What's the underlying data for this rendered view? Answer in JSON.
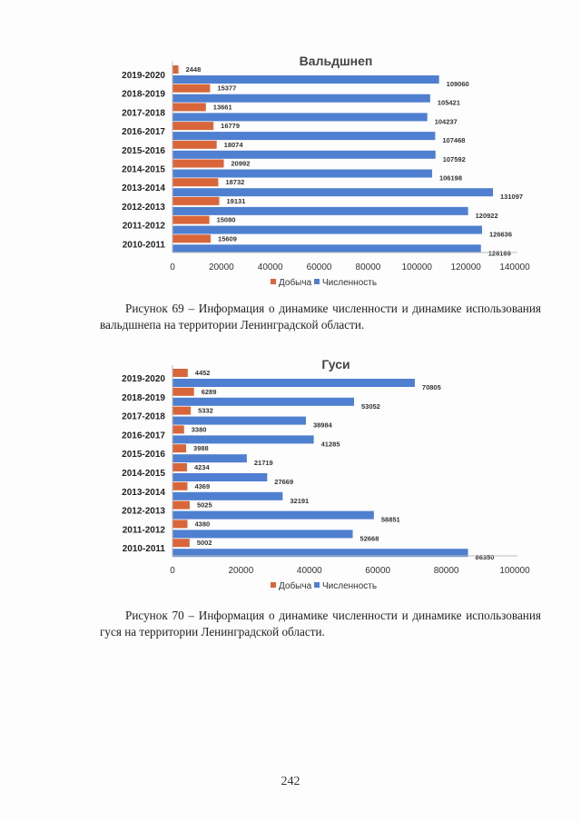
{
  "chart_data": [
    {
      "type": "bar",
      "orientation": "horizontal",
      "title": "Вальдшнеп",
      "categories": [
        "2019-2020",
        "2018-2019",
        "2017-2018",
        "2016-2017",
        "2015-2016",
        "2014-2015",
        "2013-2014",
        "2012-2013",
        "2011-2012",
        "2010-2011"
      ],
      "series": [
        {
          "name": "Добыча",
          "color": "#d9663a",
          "values": [
            2448,
            15377,
            13661,
            16779,
            18074,
            20992,
            18732,
            19131,
            15080,
            15609
          ]
        },
        {
          "name": "Численность",
          "color": "#4f7fd0",
          "values": [
            109060,
            105421,
            104237,
            107468,
            107592,
            106198,
            131097,
            120922,
            126636,
            126169
          ]
        }
      ],
      "xlim": [
        0,
        140000
      ],
      "xticks": [
        "0",
        "20000",
        "40000",
        "60000",
        "80000",
        "100000",
        "120000",
        "140000"
      ],
      "legend": "bottom",
      "grid": false
    },
    {
      "type": "bar",
      "orientation": "horizontal",
      "title": "Гуси",
      "categories": [
        "2019-2020",
        "2018-2019",
        "2017-2018",
        "2016-2017",
        "2015-2016",
        "2014-2015",
        "2013-2014",
        "2012-2013",
        "2011-2012",
        "2010-2011"
      ],
      "series": [
        {
          "name": "Добыча",
          "color": "#d9663a",
          "values": [
            4452,
            6289,
            5332,
            3380,
            3988,
            4234,
            4369,
            5025,
            4380,
            5002
          ]
        },
        {
          "name": "Численность",
          "color": "#4f7fd0",
          "values": [
            70805,
            53052,
            38984,
            41285,
            21719,
            27669,
            32191,
            58851,
            52668,
            86350
          ]
        }
      ],
      "xlim": [
        0,
        100000
      ],
      "xticks": [
        "0",
        "20000",
        "40000",
        "60000",
        "80000",
        "100000"
      ],
      "legend": "bottom",
      "grid": false
    }
  ],
  "captions": [
    "Рисунок 69 – Информация о динамике численности и динамике использования вальдшнепа на территории Ленинградской области.",
    "Рисунок 70 – Информация о динамике численности и динамике использования гуся на территории Ленинградской области."
  ],
  "page_number": "242"
}
